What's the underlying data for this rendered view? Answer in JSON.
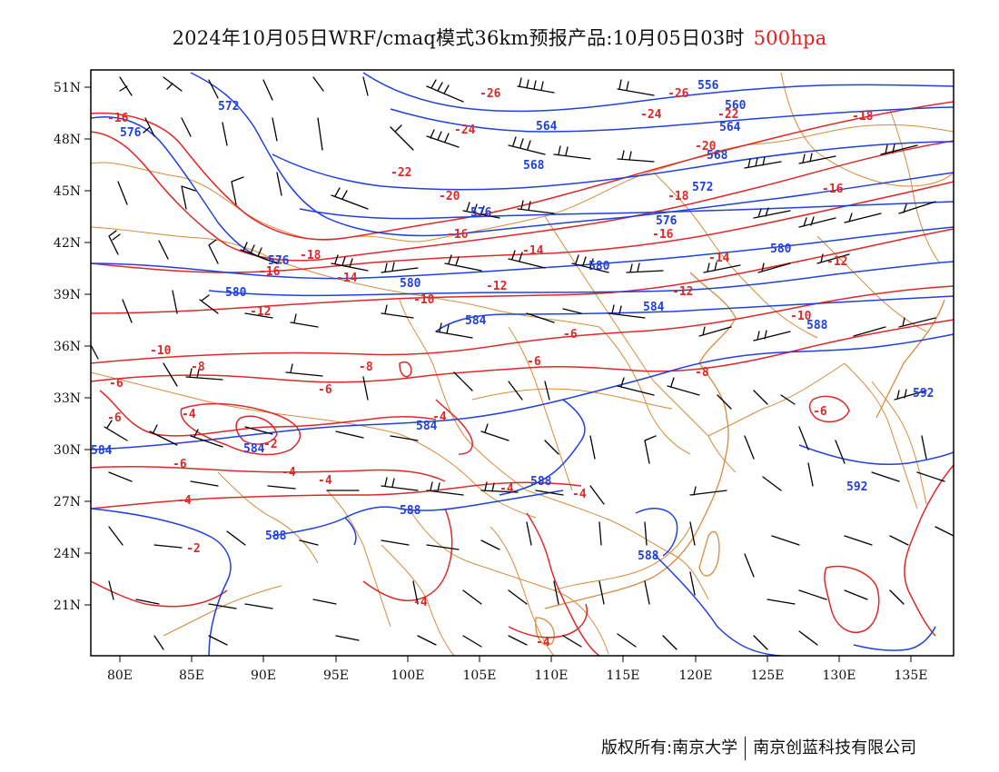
{
  "title": {
    "main": "2024年10月05日WRF/cmaq模式36km预报产品:10月05日03时",
    "level": "500hpa"
  },
  "footer": {
    "copyright": "版权所有:南京大学",
    "company": "南京创蓝科技有限公司"
  },
  "axes": {
    "lon_ticks": [
      "80E",
      "85E",
      "90E",
      "95E",
      "100E",
      "105E",
      "110E",
      "115E",
      "120E",
      "125E",
      "130E",
      "135E"
    ],
    "lat_ticks": [
      "51N",
      "48N",
      "45N",
      "42N",
      "39N",
      "36N",
      "33N",
      "30N",
      "27N",
      "24N",
      "21N"
    ],
    "lon_range": [
      78,
      138
    ],
    "lat_range": [
      18,
      52
    ]
  },
  "colors": {
    "height_contour": "#2040e0",
    "temperature_contour": "#e02828",
    "boundaries": "#d98a3a",
    "wind_barbs": "#000000"
  },
  "temperature_labels": [
    "-16",
    "-24",
    "-26",
    "-26",
    "-24",
    "-22",
    "-20",
    "-18",
    "-22",
    "-20",
    "-18",
    "-16",
    "-16",
    "-16",
    "-18",
    "-16",
    "-14",
    "-14",
    "-14",
    "-12",
    "-12",
    "-12",
    "-12",
    "-10",
    "-10",
    "-10",
    "-8",
    "-8",
    "-8",
    "-6",
    "-6",
    "-6",
    "-6",
    "-6",
    "-6",
    "-6",
    "-4",
    "-4",
    "-4",
    "-4",
    "-4",
    "-4",
    "-4",
    "-4",
    "-4",
    "-2",
    "-2"
  ],
  "height_labels": [
    "572",
    "576",
    "556",
    "560",
    "564",
    "564",
    "568",
    "568",
    "572",
    "576",
    "576",
    "576",
    "580",
    "580",
    "580",
    "580",
    "584",
    "584",
    "584",
    "588",
    "588",
    "588",
    "588",
    "592",
    "592",
    "584",
    "584",
    "588"
  ]
}
